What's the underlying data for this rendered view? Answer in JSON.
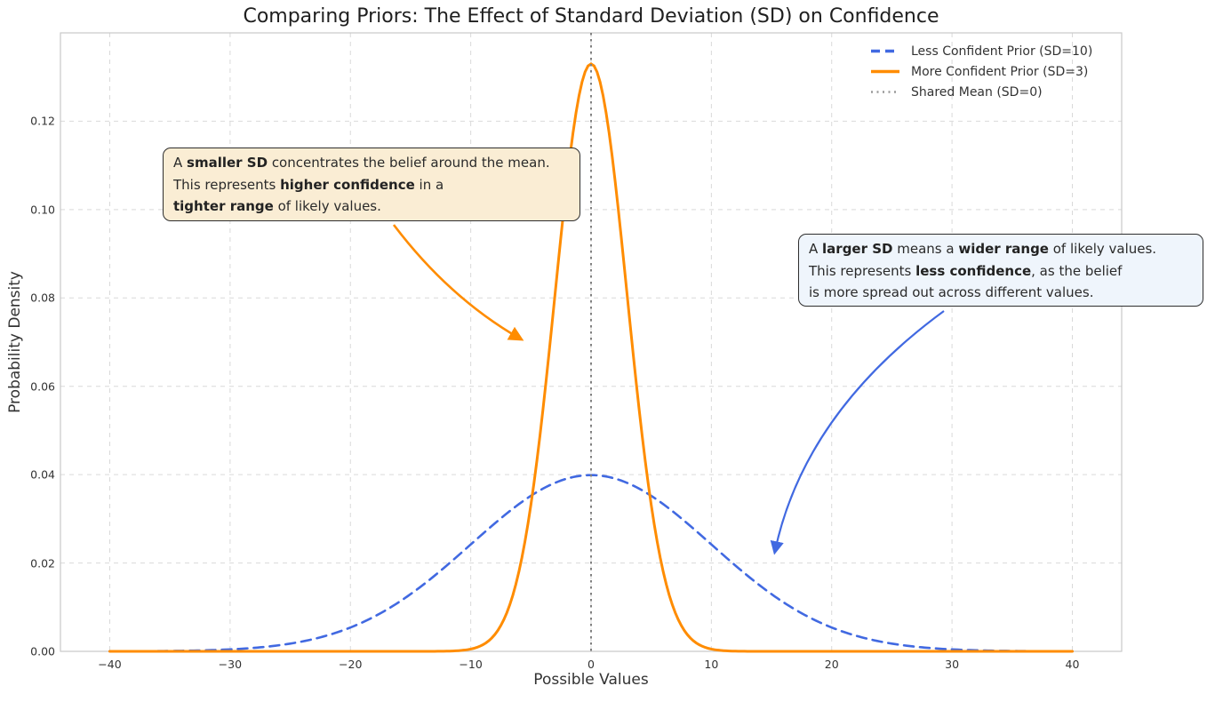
{
  "figure": {
    "title": "Comparing Priors: The Effect of Standard Deviation (SD) on Confidence"
  },
  "chart_data": {
    "type": "line",
    "title": "Comparing Priors: The Effect of Standard Deviation (SD) on Confidence",
    "xlabel": "Possible Values",
    "ylabel": "Probability Density",
    "xlim": [
      -44.1,
      44.1
    ],
    "ylim": [
      0,
      0.14
    ],
    "x_ticks": [
      -40,
      -30,
      -20,
      -10,
      0,
      10,
      20,
      30,
      40
    ],
    "x_tick_labels": [
      "−40",
      "−30",
      "−20",
      "−10",
      "0",
      "10",
      "20",
      "30",
      "40"
    ],
    "y_ticks": [
      0,
      0.02,
      0.04,
      0.06,
      0.08,
      0.1,
      0.12
    ],
    "y_tick_labels": [
      "0.00",
      "0.02",
      "0.04",
      "0.06",
      "0.08",
      "0.10",
      "0.12"
    ],
    "grid": "dashed, both axes",
    "legend_position": "upper right",
    "series": [
      {
        "name": "Less Confident Prior (SD=10)",
        "kind": "normal_pdf",
        "mean": 0,
        "sd": 10,
        "peak_density": 0.0399,
        "x_range": [
          -40,
          40
        ],
        "color": "#4169E1",
        "style": "dashed"
      },
      {
        "name": "More Confident Prior (SD=3)",
        "kind": "normal_pdf",
        "mean": 0,
        "sd": 3,
        "peak_density": 0.133,
        "x_range": [
          -40,
          40
        ],
        "color": "#FF8C00",
        "style": "solid"
      },
      {
        "name": "Shared Mean (SD=0)",
        "kind": "vline",
        "x": 0,
        "color": "#808080",
        "style": "dotted"
      }
    ]
  },
  "legend": {
    "items": [
      {
        "label": "Less Confident Prior (SD=10)",
        "color": "#4169E1",
        "style": "dashed"
      },
      {
        "label": "More Confident Prior (SD=3)",
        "color": "#FF8C00",
        "style": "solid"
      },
      {
        "label": "Shared Mean (SD=0)",
        "color": "#999999",
        "style": "dotted"
      }
    ]
  },
  "annotations": {
    "smaller_sd": {
      "bg": "#FAEDD4",
      "arrow_color": "#FF8C00",
      "lines": [
        [
          {
            "t": "A "
          },
          {
            "t": "smaller SD",
            "b": true
          },
          {
            "t": " concentrates the belief around the mean."
          }
        ],
        [
          {
            "t": "This represents "
          },
          {
            "t": "higher confidence",
            "b": true
          },
          {
            "t": " in a"
          }
        ],
        [
          {
            "t": "tighter range",
            "b": true
          },
          {
            "t": " of likely values."
          }
        ]
      ]
    },
    "larger_sd": {
      "bg": "#EFF5FC",
      "arrow_color": "#4169E1",
      "lines": [
        [
          {
            "t": "A "
          },
          {
            "t": "larger SD",
            "b": true
          },
          {
            "t": " means a "
          },
          {
            "t": "wider range",
            "b": true
          },
          {
            "t": " of likely values."
          }
        ],
        [
          {
            "t": "This represents "
          },
          {
            "t": "less confidence",
            "b": true
          },
          {
            "t": ", as the belief"
          }
        ],
        [
          {
            "t": "is more spread out across different values."
          }
        ]
      ]
    }
  },
  "colors": {
    "grid": "#d9d9d9",
    "spine": "#c9c9c9",
    "tick_text": "#333333",
    "title_text": "#1f1f1f"
  }
}
